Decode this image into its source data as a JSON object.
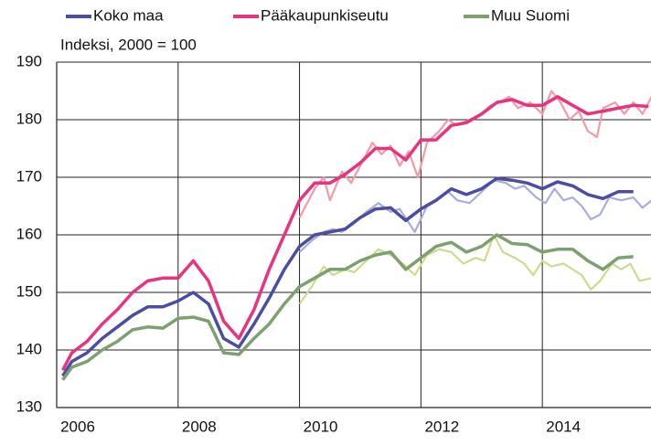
{
  "chart_data": {
    "type": "line",
    "subtitle": "Indeksi, 2000 = 100",
    "xlim": [
      2006,
      2015.79
    ],
    "xticks": [
      2006,
      2008,
      2010,
      2012,
      2014
    ],
    "ylim": [
      130,
      190
    ],
    "yticks": [
      130,
      140,
      150,
      160,
      170,
      180,
      190
    ],
    "grid": true,
    "legend": "top",
    "series": [
      {
        "color": "#f39aa6",
        "x": [
          2010,
          2010.25,
          2010.4,
          2010.5,
          2010.7,
          2010.85,
          2011,
          2011.2,
          2011.35,
          2011.5,
          2011.65,
          2011.8,
          2011.95,
          2012.1,
          2012.3,
          2012.45,
          2012.6,
          2012.8,
          2013,
          2013.15,
          2013.3,
          2013.45,
          2013.6,
          2013.8,
          2014,
          2014.15,
          2014.3,
          2014.45,
          2014.6,
          2014.75,
          2014.9,
          2015,
          2015.2,
          2015.35,
          2015.5,
          2015.65,
          2015.8
        ],
        "values": [
          163,
          168,
          170,
          166,
          171,
          169,
          172,
          176,
          174,
          175.5,
          172,
          174.5,
          170,
          176,
          178,
          180,
          179,
          180,
          181,
          182.5,
          183,
          184,
          182,
          183,
          181,
          185,
          183,
          180,
          181.5,
          178,
          177,
          182,
          183,
          181,
          183,
          181,
          184
        ]
      },
      {
        "color": "#aaaddb",
        "x": [
          2010,
          2010.2,
          2010.4,
          2010.55,
          2010.7,
          2010.9,
          2011.1,
          2011.3,
          2011.5,
          2011.65,
          2011.9,
          2012.1,
          2012.3,
          2012.45,
          2012.6,
          2012.8,
          2013,
          2013.2,
          2013.4,
          2013.55,
          2013.7,
          2013.9,
          2014.05,
          2014.2,
          2014.35,
          2014.5,
          2014.65,
          2014.8,
          2014.95,
          2015.1,
          2015.3,
          2015.5,
          2015.65,
          2015.8
        ],
        "values": [
          157,
          159,
          160.5,
          161,
          160.5,
          162,
          164,
          165.5,
          164,
          164.5,
          160.5,
          165,
          166.5,
          167.5,
          166,
          165.5,
          167.5,
          169.5,
          169,
          168,
          168.5,
          166.5,
          165.5,
          168,
          166,
          166.5,
          165,
          162.7,
          163.5,
          166.5,
          166,
          166.5,
          164.7,
          166
        ]
      },
      {
        "color": "#cfdb8c",
        "x": [
          2010,
          2010.2,
          2010.4,
          2010.55,
          2010.75,
          2010.9,
          2011.1,
          2011.3,
          2011.5,
          2011.7,
          2011.9,
          2012.1,
          2012.3,
          2012.5,
          2012.7,
          2012.9,
          2013.05,
          2013.2,
          2013.35,
          2013.55,
          2013.7,
          2013.85,
          2014,
          2014.15,
          2014.35,
          2014.5,
          2014.65,
          2014.8,
          2014.95,
          2015.15,
          2015.3,
          2015.45,
          2015.6,
          2015.8
        ],
        "values": [
          148,
          151,
          154.5,
          153,
          154,
          153.5,
          155.5,
          157.5,
          156.5,
          155,
          153,
          156.5,
          157.5,
          157,
          155,
          156,
          155.5,
          160,
          157,
          156,
          155,
          153,
          155.5,
          154.5,
          155,
          154,
          153,
          150.5,
          152,
          155,
          154,
          155,
          152,
          152.5
        ]
      },
      {
        "name": "Koko maa",
        "color": "#4b4ea0",
        "x": [
          2006.1,
          2006.25,
          2006.5,
          2006.75,
          2007,
          2007.25,
          2007.5,
          2007.75,
          2008,
          2008.25,
          2008.5,
          2008.75,
          2009,
          2009.25,
          2009.5,
          2009.75,
          2010,
          2010.25,
          2010.5,
          2010.75,
          2011,
          2011.25,
          2011.5,
          2011.75,
          2012,
          2012.25,
          2012.5,
          2012.75,
          2013,
          2013.25,
          2013.5,
          2013.75,
          2014,
          2014.25,
          2014.5,
          2014.75,
          2015,
          2015.25,
          2015.5
        ],
        "values": [
          135.5,
          138,
          139.5,
          142,
          144,
          146,
          147.5,
          147.5,
          148.5,
          150,
          148,
          142,
          140.5,
          144.5,
          149,
          154,
          158,
          160,
          160.5,
          161,
          163,
          164.5,
          164.7,
          162.5,
          164.5,
          166,
          168,
          167,
          168,
          169.8,
          169.5,
          169,
          168,
          169.2,
          168.5,
          167,
          166.3,
          167.5,
          167.5
        ]
      },
      {
        "name": "Pääkaupunkiseutu",
        "color": "#e8347e",
        "x": [
          2006.1,
          2006.25,
          2006.5,
          2006.75,
          2007,
          2007.25,
          2007.5,
          2007.75,
          2008,
          2008.25,
          2008.5,
          2008.75,
          2009,
          2009.25,
          2009.5,
          2009.75,
          2010,
          2010.25,
          2010.5,
          2010.75,
          2011,
          2011.25,
          2011.5,
          2011.75,
          2012,
          2012.25,
          2012.5,
          2012.75,
          2013,
          2013.25,
          2013.5,
          2013.75,
          2014,
          2014.25,
          2014.5,
          2014.75,
          2015,
          2015.25,
          2015.5,
          2015.75
        ],
        "values": [
          136.5,
          139.5,
          141.5,
          144.5,
          147,
          150,
          152,
          152.5,
          152.5,
          155.5,
          152,
          145,
          142,
          147,
          154,
          160,
          166,
          169,
          169,
          170.5,
          172.5,
          175,
          175,
          173,
          176.5,
          176.5,
          179,
          179.5,
          181,
          183,
          183.5,
          182.5,
          182.5,
          184,
          182.5,
          181,
          181.5,
          182,
          182.5,
          182.3
        ]
      },
      {
        "name": "Muu Suomi",
        "color": "#7da06f",
        "x": [
          2006.1,
          2006.25,
          2006.5,
          2006.75,
          2007,
          2007.25,
          2007.5,
          2007.75,
          2008,
          2008.25,
          2008.5,
          2008.75,
          2009,
          2009.25,
          2009.5,
          2009.75,
          2010,
          2010.25,
          2010.5,
          2010.75,
          2011,
          2011.25,
          2011.5,
          2011.75,
          2012,
          2012.25,
          2012.5,
          2012.75,
          2013,
          2013.25,
          2013.5,
          2013.75,
          2014,
          2014.25,
          2014.5,
          2014.75,
          2015,
          2015.25,
          2015.5
        ],
        "values": [
          134.8,
          137,
          138,
          140,
          141.5,
          143.5,
          144,
          143.8,
          145.5,
          145.7,
          145,
          139.5,
          139.2,
          142,
          144.5,
          148,
          151,
          152.5,
          154,
          154,
          155.5,
          156.5,
          157,
          154,
          156,
          158,
          158.7,
          157,
          158,
          160,
          158.5,
          158.3,
          157,
          157.5,
          157.5,
          155.5,
          154,
          156,
          156.2
        ]
      }
    ]
  }
}
